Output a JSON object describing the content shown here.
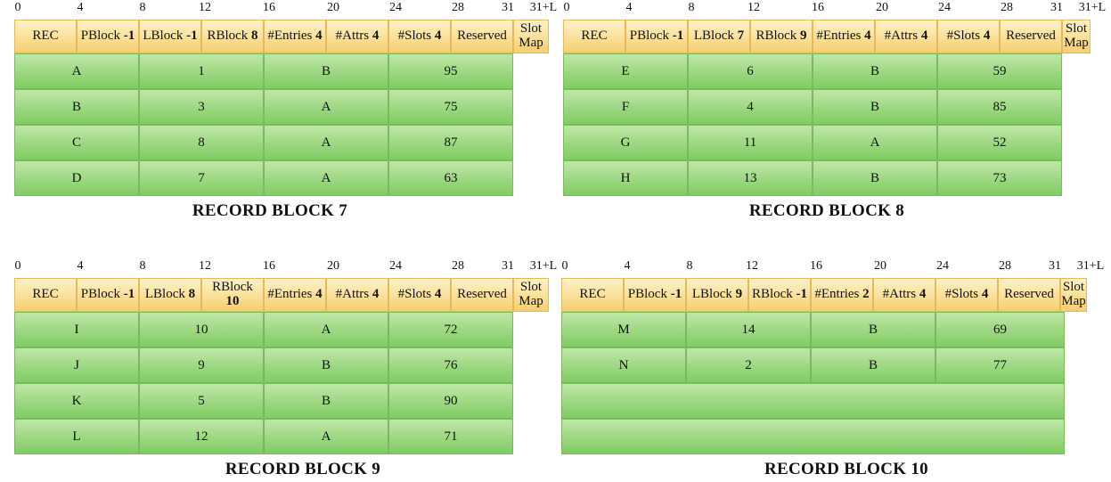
{
  "ruler": [
    "0",
    "4",
    "8",
    "12",
    "16",
    "20",
    "24",
    "28",
    "31",
    "31+L"
  ],
  "blocks": [
    {
      "title": "RECORD BLOCK 7",
      "header": {
        "rec": "REC",
        "pblock": {
          "label": "PBlock",
          "value": "-1"
        },
        "lblock": {
          "label": "LBlock",
          "value": "-1"
        },
        "rblock": {
          "label": "RBlock",
          "value": "8"
        },
        "entries": {
          "label": "#Entries",
          "value": "4"
        },
        "attrs": {
          "label": "#Attrs",
          "value": "4"
        },
        "slots": {
          "label": "#Slots",
          "value": "4"
        },
        "reserved": "Reserved",
        "slotmap": "Slot Map"
      },
      "rows": [
        [
          "A",
          "1",
          "B",
          "95"
        ],
        [
          "B",
          "3",
          "A",
          "75"
        ],
        [
          "C",
          "8",
          "A",
          "87"
        ],
        [
          "D",
          "7",
          "A",
          "63"
        ]
      ]
    },
    {
      "title": "RECORD BLOCK 8",
      "header": {
        "rec": "REC",
        "pblock": {
          "label": "PBlock",
          "value": "-1"
        },
        "lblock": {
          "label": "LBlock",
          "value": "7"
        },
        "rblock": {
          "label": "RBlock",
          "value": "9"
        },
        "entries": {
          "label": "#Entries",
          "value": "4"
        },
        "attrs": {
          "label": "#Attrs",
          "value": "4"
        },
        "slots": {
          "label": "#Slots",
          "value": "4"
        },
        "reserved": "Reserved",
        "slotmap": "Slot Map"
      },
      "rows": [
        [
          "E",
          "6",
          "B",
          "59"
        ],
        [
          "F",
          "4",
          "B",
          "85"
        ],
        [
          "G",
          "11",
          "A",
          "52"
        ],
        [
          "H",
          "13",
          "B",
          "73"
        ]
      ]
    },
    {
      "title": "RECORD BLOCK 9",
      "header": {
        "rec": "REC",
        "pblock": {
          "label": "PBlock",
          "value": "-1"
        },
        "lblock": {
          "label": "LBlock",
          "value": "8"
        },
        "rblock": {
          "label": "RBlock",
          "value": "10"
        },
        "entries": {
          "label": "#Entries",
          "value": "4"
        },
        "attrs": {
          "label": "#Attrs",
          "value": "4"
        },
        "slots": {
          "label": "#Slots",
          "value": "4"
        },
        "reserved": "Reserved",
        "slotmap": "Slot Map"
      },
      "rows": [
        [
          "I",
          "10",
          "A",
          "72"
        ],
        [
          "J",
          "9",
          "B",
          "76"
        ],
        [
          "K",
          "5",
          "B",
          "90"
        ],
        [
          "L",
          "12",
          "A",
          "71"
        ]
      ]
    },
    {
      "title": "RECORD BLOCK 10",
      "header": {
        "rec": "REC",
        "pblock": {
          "label": "PBlock",
          "value": "-1"
        },
        "lblock": {
          "label": "LBlock",
          "value": "9"
        },
        "rblock": {
          "label": "RBlock",
          "value": "-1"
        },
        "entries": {
          "label": "#Entries",
          "value": "2"
        },
        "attrs": {
          "label": "#Attrs",
          "value": "4"
        },
        "slots": {
          "label": "#Slots",
          "value": "4"
        },
        "reserved": "Reserved",
        "slotmap": "Slot Map"
      },
      "rows": [
        [
          "M",
          "14",
          "B",
          "69"
        ],
        [
          "N",
          "2",
          "B",
          "77"
        ],
        [
          "",
          "",
          "",
          ""
        ],
        [
          "",
          "",
          "",
          ""
        ]
      ]
    }
  ]
}
